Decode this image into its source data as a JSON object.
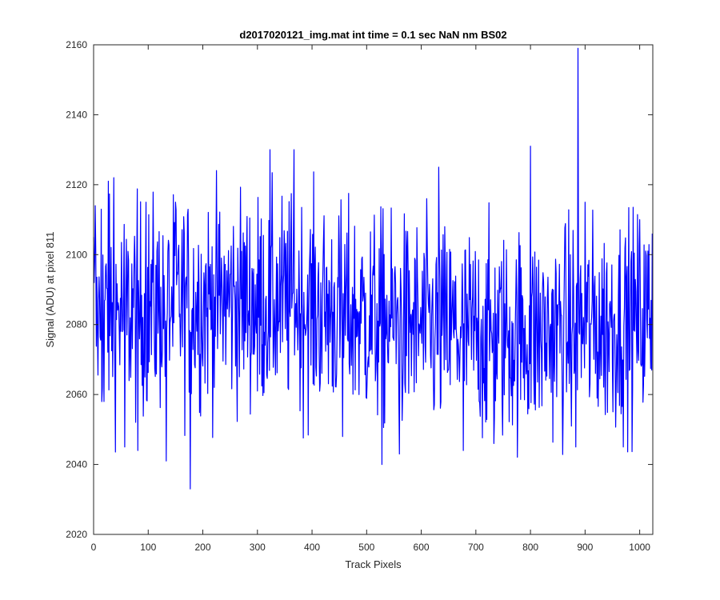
{
  "chart_data": {
    "type": "line",
    "title": "d2017020121_img.mat int time = 0.1 sec  NaN nm BS02",
    "xlabel": "Track Pixels",
    "ylabel": "Signal (ADU) at pixel 811",
    "xlim": [
      0,
      1024
    ],
    "ylim": [
      2020,
      2160
    ],
    "xticks": [
      0,
      100,
      200,
      300,
      400,
      500,
      600,
      700,
      800,
      900,
      1000
    ],
    "yticks": [
      2020,
      2040,
      2060,
      2080,
      2100,
      2120,
      2140,
      2160
    ],
    "grid": false,
    "legend": "none",
    "series": [
      {
        "color": "#0000ff",
        "mean": 2082,
        "n_points": 1024,
        "notable_points": [
          {
            "x": 0,
            "y": 2105
          },
          {
            "x": 1,
            "y": 2092
          },
          {
            "x": 3,
            "y": 2114
          },
          {
            "x": 9,
            "y": 2087
          },
          {
            "x": 14,
            "y": 2113
          },
          {
            "x": 19,
            "y": 2058
          },
          {
            "x": 27,
            "y": 2121
          },
          {
            "x": 37,
            "y": 2122
          },
          {
            "x": 57,
            "y": 2045
          },
          {
            "x": 81,
            "y": 2044
          },
          {
            "x": 96,
            "y": 2115
          },
          {
            "x": 133,
            "y": 2041
          },
          {
            "x": 150,
            "y": 2115
          },
          {
            "x": 177,
            "y": 2033
          },
          {
            "x": 300,
            "y": 2061
          },
          {
            "x": 323,
            "y": 2130
          },
          {
            "x": 367,
            "y": 2130
          },
          {
            "x": 456,
            "y": 2048
          },
          {
            "x": 528,
            "y": 2040
          },
          {
            "x": 560,
            "y": 2043
          },
          {
            "x": 632,
            "y": 2125
          },
          {
            "x": 677,
            "y": 2044
          },
          {
            "x": 733,
            "y": 2046
          },
          {
            "x": 800,
            "y": 2131
          },
          {
            "x": 883,
            "y": 2045
          },
          {
            "x": 887,
            "y": 2159
          },
          {
            "x": 900,
            "y": 2115
          },
          {
            "x": 1000,
            "y": 2110
          },
          {
            "x": 1022,
            "y": 2067
          },
          {
            "x": 1023,
            "y": 2106
          }
        ]
      }
    ]
  }
}
